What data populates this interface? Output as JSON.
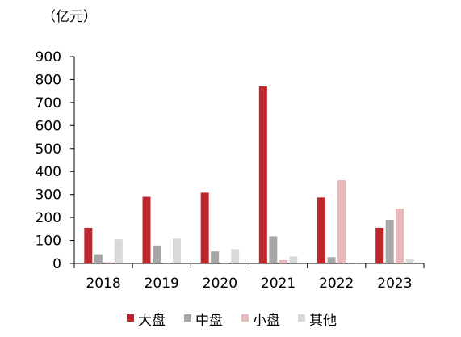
{
  "chart_data": {
    "type": "bar",
    "unit_label": "（亿元）",
    "categories": [
      "2018",
      "2019",
      "2020",
      "2021",
      "2022",
      "2023"
    ],
    "series": [
      {
        "name": "大盘",
        "color": "#C0272D",
        "values": [
          155,
          290,
          308,
          770,
          287,
          155
        ]
      },
      {
        "name": "中盘",
        "color": "#A6A6A6",
        "values": [
          40,
          78,
          52,
          118,
          27,
          190
        ]
      },
      {
        "name": "小盘",
        "color": "#E8B8BB",
        "values": [
          5,
          3,
          2,
          15,
          362,
          238
        ]
      },
      {
        "name": "其他",
        "color": "#D9D9D9",
        "values": [
          105,
          108,
          62,
          30,
          2,
          18
        ]
      }
    ],
    "ylim": [
      0,
      900
    ],
    "yticks": [
      0,
      100,
      200,
      300,
      400,
      500,
      600,
      700,
      800,
      900
    ],
    "legend_position": "bottom",
    "grid": false
  }
}
